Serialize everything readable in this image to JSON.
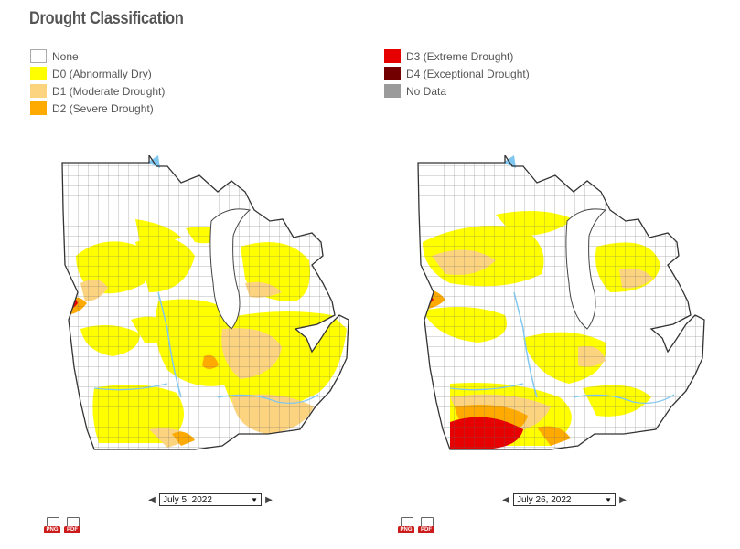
{
  "title": "Drought Classification",
  "legend": {
    "left": [
      {
        "label": "None",
        "color": "#ffffff"
      },
      {
        "label": "D0 (Abnormally Dry)",
        "color": "#ffff00"
      },
      {
        "label": "D1 (Moderate Drought)",
        "color": "#fcd37f"
      },
      {
        "label": "D2 (Severe Drought)",
        "color": "#ffaa00"
      }
    ],
    "right": [
      {
        "label": "D3 (Extreme Drought)",
        "color": "#e60000"
      },
      {
        "label": "D4 (Exceptional Drought)",
        "color": "#730000"
      },
      {
        "label": "No Data",
        "color": "#9b9b9b"
      }
    ]
  },
  "maps": [
    {
      "date": "July 5, 2022",
      "prev_icon": "chevron-left-icon",
      "next_icon": "chevron-right-icon"
    },
    {
      "date": "July 26, 2022",
      "prev_icon": "chevron-left-icon",
      "next_icon": "chevron-right-icon"
    }
  ],
  "downloads": {
    "png_label": "PNG",
    "pdf_label": "PDF"
  },
  "colors": {
    "water": "#7fc7f0",
    "none": "#ffffff",
    "d0": "#ffff00",
    "d1": "#fcd37f",
    "d2": "#ffaa00",
    "d3": "#e60000",
    "border": "#444444"
  }
}
